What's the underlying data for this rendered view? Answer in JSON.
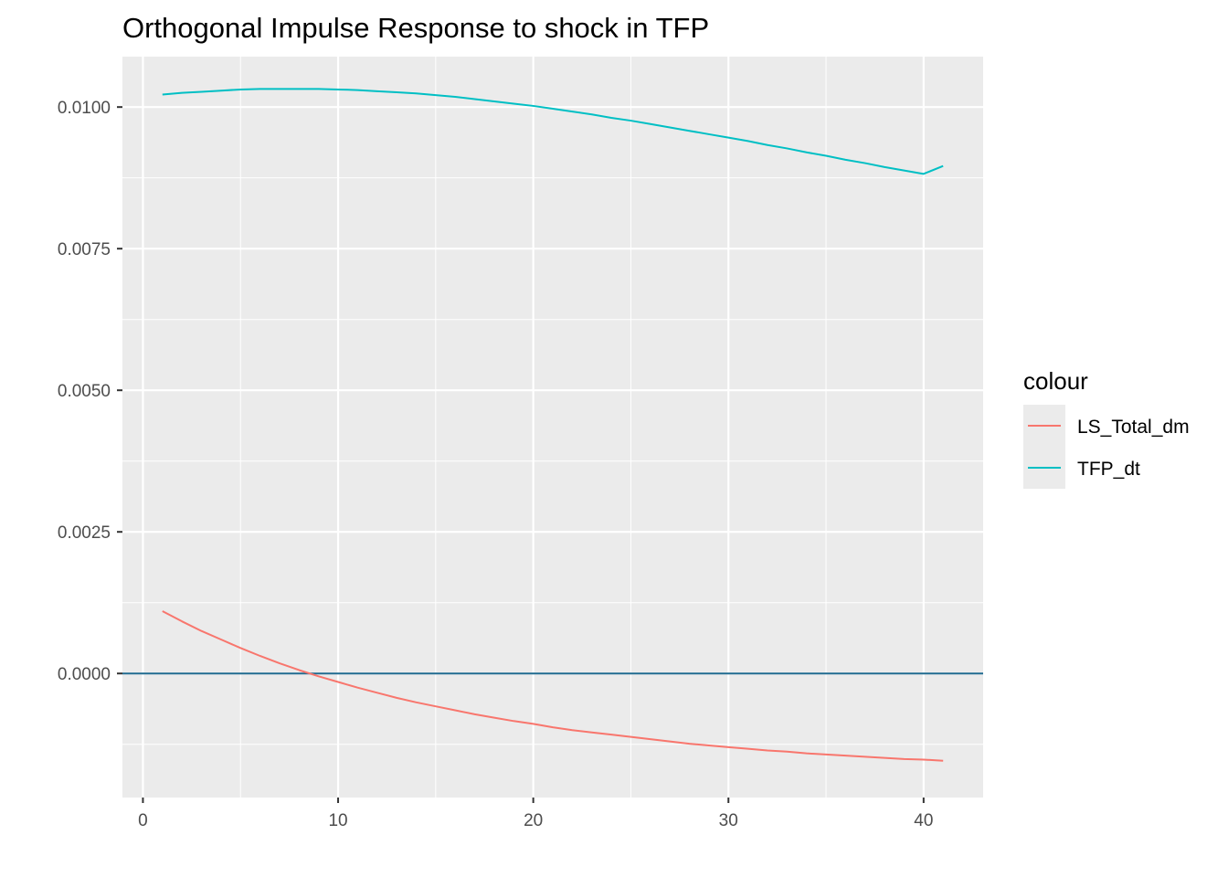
{
  "chart_data": {
    "type": "line",
    "title": "Orthogonal Impulse Response to shock in TFP",
    "xlabel": "",
    "ylabel": "",
    "xlim": [
      -1.05,
      43.05
    ],
    "ylim": [
      -0.00219,
      0.01089
    ],
    "x_ticks": [
      0,
      10,
      20,
      30,
      40
    ],
    "x_tick_labels": [
      "0",
      "10",
      "20",
      "30",
      "40"
    ],
    "y_ticks": [
      0.0,
      0.0025,
      0.005,
      0.0075,
      0.01
    ],
    "y_tick_labels": [
      "0.0000",
      "0.0025",
      "0.0050",
      "0.0075",
      "0.0100"
    ],
    "grid": true,
    "hline": {
      "y": 0.0,
      "color": "#1f6a8f"
    },
    "legend": {
      "title": "colour",
      "position": "right"
    },
    "x": [
      1,
      2,
      3,
      4,
      5,
      6,
      7,
      8,
      9,
      10,
      11,
      12,
      13,
      14,
      15,
      16,
      17,
      18,
      19,
      20,
      21,
      22,
      23,
      24,
      25,
      26,
      27,
      28,
      29,
      30,
      31,
      32,
      33,
      34,
      35,
      36,
      37,
      38,
      39,
      40,
      41
    ],
    "series": [
      {
        "name": "LS_Total_dm",
        "color": "#F8766D",
        "values": [
          0.0011,
          0.00092,
          0.00075,
          0.0006,
          0.00045,
          0.00031,
          0.00018,
          6e-05,
          -5e-05,
          -0.00015,
          -0.00025,
          -0.00034,
          -0.00043,
          -0.00051,
          -0.00058,
          -0.00065,
          -0.00072,
          -0.00078,
          -0.00084,
          -0.00089,
          -0.00095,
          -0.001,
          -0.00104,
          -0.00108,
          -0.00112,
          -0.00116,
          -0.0012,
          -0.00124,
          -0.00127,
          -0.0013,
          -0.00133,
          -0.00136,
          -0.00138,
          -0.00141,
          -0.00143,
          -0.00145,
          -0.00147,
          -0.00149,
          -0.00151,
          -0.00152,
          -0.00154
        ]
      },
      {
        "name": "TFP_dt",
        "color": "#00BFC4",
        "values": [
          0.01022,
          0.01025,
          0.01027,
          0.01029,
          0.01031,
          0.01032,
          0.01032,
          0.01032,
          0.01032,
          0.01031,
          0.0103,
          0.01028,
          0.01026,
          0.01024,
          0.01021,
          0.01018,
          0.01014,
          0.0101,
          0.01006,
          0.01002,
          0.00997,
          0.00992,
          0.00987,
          0.00981,
          0.00976,
          0.0097,
          0.00964,
          0.00958,
          0.00952,
          0.00946,
          0.0094,
          0.00933,
          0.00927,
          0.0092,
          0.00914,
          0.00907,
          0.00901,
          0.00894,
          0.00888,
          0.00882,
          0.00896
        ]
      }
    ]
  }
}
